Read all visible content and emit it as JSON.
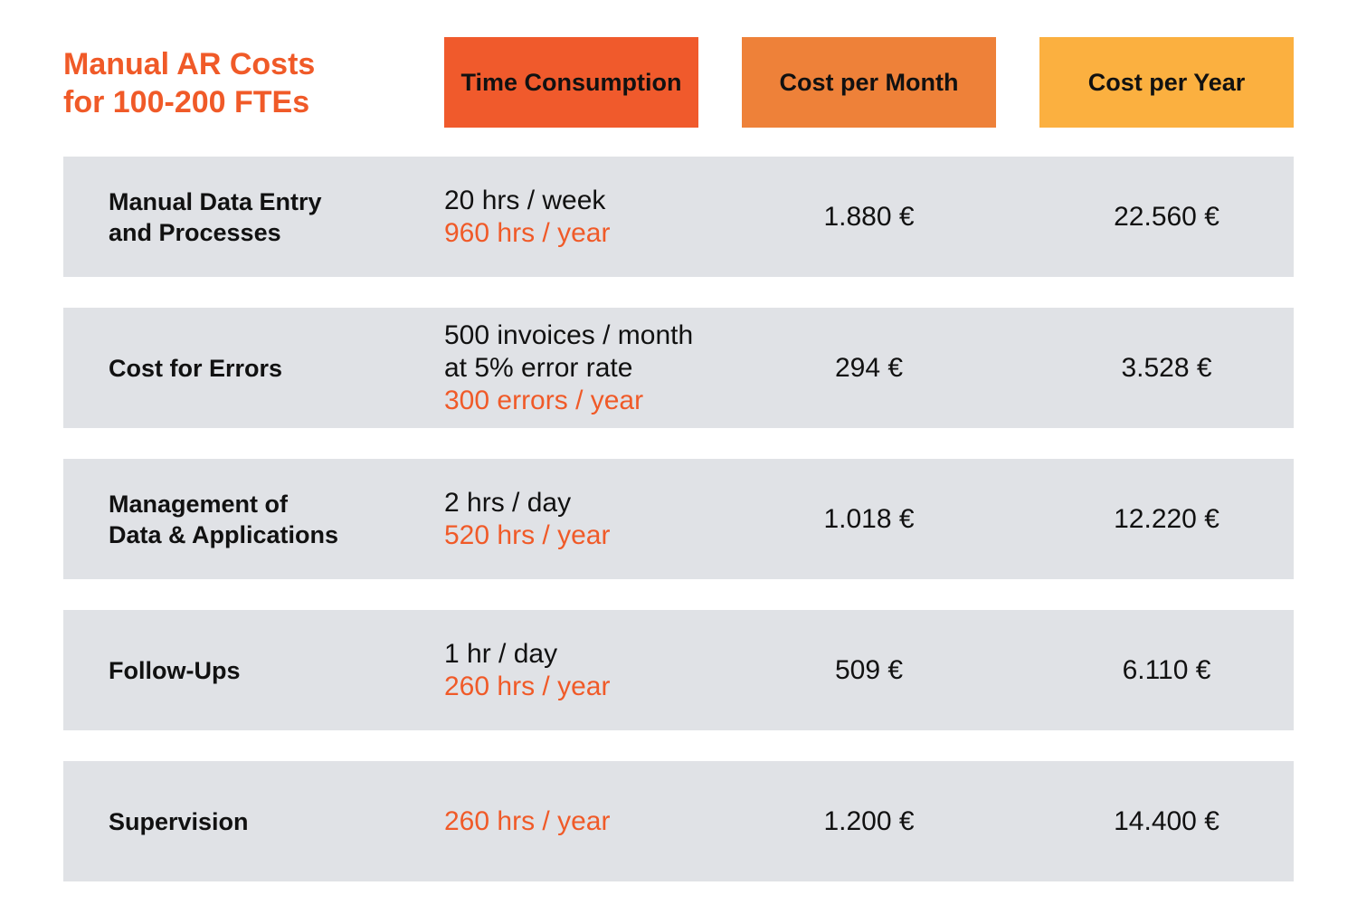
{
  "chart_data": {
    "type": "table",
    "title_lines": [
      "Manual AR Costs",
      "for 100-200 FTEs"
    ],
    "columns": [
      {
        "label": "Time Consumption",
        "color": "#f05a2c"
      },
      {
        "label": "Cost per Month",
        "color": "#ee8139"
      },
      {
        "label": "Cost per Year",
        "color": "#fbb040"
      }
    ],
    "highlight_color": "#f05a28",
    "row_background": "#e0e2e6",
    "rows": [
      {
        "label_lines": [
          "Manual Data Entry",
          "and Processes"
        ],
        "time_lines": [
          "20 hrs / week"
        ],
        "time_highlight_lines": [
          "960 hrs / year"
        ],
        "cost_month": "1.880 €",
        "cost_year": "22.560 €"
      },
      {
        "label_lines": [
          "Cost for Errors"
        ],
        "time_lines": [
          "500 invoices / month",
          "at 5% error rate"
        ],
        "time_highlight_lines": [
          "300 errors / year"
        ],
        "cost_month": "294 €",
        "cost_year": "3.528 €"
      },
      {
        "label_lines": [
          "Management of",
          "Data & Applications"
        ],
        "time_lines": [
          "2 hrs / day"
        ],
        "time_highlight_lines": [
          "520 hrs / year"
        ],
        "cost_month": "1.018 €",
        "cost_year": "12.220 €"
      },
      {
        "label_lines": [
          "Follow-Ups"
        ],
        "time_lines": [
          "1 hr / day"
        ],
        "time_highlight_lines": [
          "260 hrs / year"
        ],
        "cost_month": "509 €",
        "cost_year": "6.110 €"
      },
      {
        "label_lines": [
          "Supervision"
        ],
        "time_lines": [],
        "time_highlight_lines": [
          "260 hrs / year"
        ],
        "cost_month": "1.200 €",
        "cost_year": "14.400 €"
      }
    ]
  }
}
